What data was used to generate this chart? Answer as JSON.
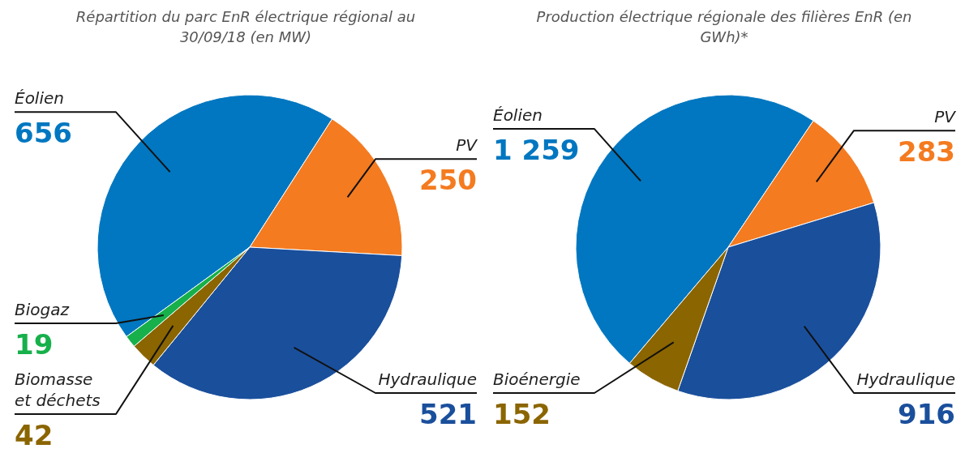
{
  "chart_data": [
    {
      "type": "pie",
      "title": "Répartition du parc EnR électrique régional au 30/09/18 (en MW)",
      "categories": [
        "Éolien",
        "PV",
        "Hydraulique",
        "Biomasse et déchets",
        "Biogaz"
      ],
      "values": [
        656,
        250,
        521,
        42,
        19
      ],
      "colors": [
        "#0077c0",
        "#f47b20",
        "#1a4f9c",
        "#8b6500",
        "#17b04b"
      ],
      "value_labels": [
        "656",
        "250",
        "521",
        "42",
        "19"
      ],
      "legend": false
    },
    {
      "type": "pie",
      "title": "Production électrique régionale des filières EnR (en GWh)*",
      "categories": [
        "Éolien",
        "PV",
        "Hydraulique",
        "Bioénergie"
      ],
      "values": [
        1259,
        283,
        916,
        152
      ],
      "colors": [
        "#0077c0",
        "#f47b20",
        "#1a4f9c",
        "#8b6500"
      ],
      "value_labels": [
        "1 259",
        "283",
        "916",
        "152"
      ],
      "legend": false
    }
  ]
}
